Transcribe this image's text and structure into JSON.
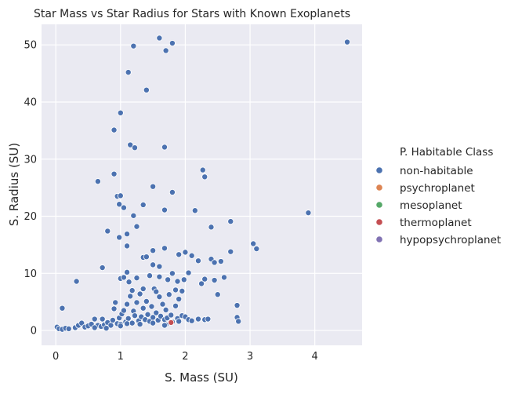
{
  "chart_data": {
    "type": "scatter",
    "title": "Star Mass vs Star Radius for Stars with Known Exoplanets",
    "xlabel": "S. Mass (SU)",
    "ylabel": "S. Radius (SU)",
    "xlim": [
      -0.22,
      4.73
    ],
    "ylim": [
      -2.6,
      53.6
    ],
    "xticks": [
      0,
      1,
      2,
      3,
      4
    ],
    "yticks": [
      0,
      10,
      20,
      30,
      40,
      50
    ],
    "grid": true,
    "legend": {
      "title": "P. Habitable Class",
      "placement": "right",
      "entries": [
        {
          "name": "non-habitable",
          "color": "#4c72b0"
        },
        {
          "name": "psychroplanet",
          "color": "#dd8452"
        },
        {
          "name": "mesoplanet",
          "color": "#55a868"
        },
        {
          "name": "thermoplanet",
          "color": "#c44e52"
        },
        {
          "name": "hypopsychroplanet",
          "color": "#8172b3"
        }
      ]
    },
    "series": [
      {
        "name": "non-habitable",
        "color": "#4c72b0",
        "points": [
          [
            1.6,
            51.2
          ],
          [
            1.8,
            50.3
          ],
          [
            1.2,
            49.8
          ],
          [
            1.7,
            49.0
          ],
          [
            4.5,
            50.5
          ],
          [
            1.12,
            45.2
          ],
          [
            1.4,
            42.1
          ],
          [
            1.0,
            38.1
          ],
          [
            0.9,
            35.1
          ],
          [
            1.15,
            32.5
          ],
          [
            1.22,
            32.0
          ],
          [
            1.68,
            32.1
          ],
          [
            2.27,
            28.1
          ],
          [
            2.3,
            26.9
          ],
          [
            0.9,
            27.4
          ],
          [
            0.65,
            26.1
          ],
          [
            1.5,
            25.2
          ],
          [
            1.8,
            24.2
          ],
          [
            0.95,
            23.5
          ],
          [
            1.0,
            23.6
          ],
          [
            0.98,
            22.1
          ],
          [
            1.35,
            22.0
          ],
          [
            1.05,
            21.5
          ],
          [
            1.68,
            21.1
          ],
          [
            2.15,
            21.0
          ],
          [
            1.2,
            20.1
          ],
          [
            3.9,
            20.6
          ],
          [
            2.7,
            19.1
          ],
          [
            1.25,
            18.2
          ],
          [
            2.4,
            18.1
          ],
          [
            0.8,
            17.4
          ],
          [
            1.1,
            16.9
          ],
          [
            0.98,
            16.3
          ],
          [
            1.1,
            14.8
          ],
          [
            1.68,
            14.4
          ],
          [
            3.05,
            15.2
          ],
          [
            3.1,
            14.3
          ],
          [
            1.5,
            14.0
          ],
          [
            2.7,
            13.8
          ],
          [
            2.0,
            13.7
          ],
          [
            1.9,
            13.3
          ],
          [
            2.1,
            13.1
          ],
          [
            1.35,
            12.8
          ],
          [
            1.4,
            12.9
          ],
          [
            2.4,
            12.5
          ],
          [
            2.2,
            12.2
          ],
          [
            2.45,
            11.9
          ],
          [
            2.55,
            12.1
          ],
          [
            1.5,
            11.5
          ],
          [
            1.6,
            11.2
          ],
          [
            1.8,
            10.0
          ],
          [
            0.72,
            11.0
          ],
          [
            1.1,
            10.2
          ],
          [
            1.0,
            9.1
          ],
          [
            2.05,
            10.1
          ],
          [
            2.25,
            8.2
          ],
          [
            2.3,
            9.0
          ],
          [
            2.45,
            8.8
          ],
          [
            2.6,
            9.3
          ],
          [
            2.5,
            6.3
          ],
          [
            2.8,
            4.4
          ],
          [
            2.8,
            2.3
          ],
          [
            2.82,
            1.6
          ],
          [
            0.32,
            8.6
          ],
          [
            0.1,
            3.9
          ],
          [
            0.02,
            0.6
          ],
          [
            0.05,
            0.3
          ],
          [
            0.1,
            0.2
          ],
          [
            0.15,
            0.4
          ],
          [
            0.2,
            0.3
          ],
          [
            0.3,
            0.5
          ],
          [
            0.35,
            0.9
          ],
          [
            0.4,
            1.3
          ],
          [
            0.45,
            0.6
          ],
          [
            0.5,
            0.8
          ],
          [
            0.55,
            1.1
          ],
          [
            0.6,
            2.0
          ],
          [
            0.65,
            0.9
          ],
          [
            0.7,
            0.7
          ],
          [
            0.72,
            2.0
          ],
          [
            0.75,
            1.0
          ],
          [
            0.8,
            1.4
          ],
          [
            0.85,
            0.9
          ],
          [
            0.88,
            1.8
          ],
          [
            0.9,
            3.8
          ],
          [
            0.92,
            4.9
          ],
          [
            0.95,
            1.2
          ],
          [
            0.98,
            2.2
          ],
          [
            1.0,
            1.1
          ],
          [
            1.02,
            2.9
          ],
          [
            1.05,
            3.5
          ],
          [
            1.08,
            1.5
          ],
          [
            1.1,
            4.6
          ],
          [
            1.12,
            2.1
          ],
          [
            1.15,
            6.0
          ],
          [
            1.18,
            1.3
          ],
          [
            1.2,
            3.4
          ],
          [
            1.22,
            2.6
          ],
          [
            1.25,
            4.9
          ],
          [
            1.28,
            1.7
          ],
          [
            1.3,
            6.4
          ],
          [
            1.32,
            2.4
          ],
          [
            1.35,
            3.9
          ],
          [
            1.38,
            1.9
          ],
          [
            1.4,
            5.1
          ],
          [
            1.42,
            2.8
          ],
          [
            1.45,
            1.6
          ],
          [
            1.48,
            4.2
          ],
          [
            1.5,
            2.3
          ],
          [
            1.52,
            7.3
          ],
          [
            1.55,
            3.1
          ],
          [
            1.58,
            1.8
          ],
          [
            1.6,
            5.9
          ],
          [
            1.62,
            2.5
          ],
          [
            1.65,
            4.6
          ],
          [
            1.68,
            1.9
          ],
          [
            1.7,
            3.6
          ],
          [
            1.72,
            2.2
          ],
          [
            1.75,
            6.3
          ],
          [
            1.78,
            2.7
          ],
          [
            1.8,
            1.5
          ],
          [
            1.85,
            4.3
          ],
          [
            1.88,
            2.1
          ],
          [
            1.9,
            5.5
          ],
          [
            1.95,
            2.6
          ],
          [
            2.0,
            2.4
          ],
          [
            2.05,
            1.9
          ],
          [
            2.1,
            1.7
          ],
          [
            2.2,
            2.0
          ],
          [
            2.3,
            1.9
          ],
          [
            2.35,
            2.0
          ],
          [
            1.05,
            9.3
          ],
          [
            1.13,
            8.5
          ],
          [
            1.25,
            9.2
          ],
          [
            1.45,
            9.6
          ],
          [
            1.6,
            9.4
          ],
          [
            1.73,
            8.9
          ],
          [
            1.88,
            8.6
          ],
          [
            1.98,
            8.9
          ],
          [
            1.18,
            7.0
          ],
          [
            1.35,
            7.3
          ],
          [
            1.55,
            6.8
          ],
          [
            1.85,
            7.1
          ],
          [
            1.95,
            6.9
          ],
          [
            0.6,
            0.5
          ],
          [
            0.78,
            0.4
          ],
          [
            1.0,
            0.8
          ],
          [
            1.1,
            1.2
          ],
          [
            1.3,
            1.1
          ],
          [
            1.5,
            1.3
          ],
          [
            1.7,
            1.0
          ],
          [
            1.68,
            0.9
          ],
          [
            1.9,
            1.6
          ]
        ]
      },
      {
        "name": "thermoplanet",
        "color": "#c44e52",
        "points": [
          [
            1.78,
            1.4
          ]
        ]
      }
    ]
  }
}
